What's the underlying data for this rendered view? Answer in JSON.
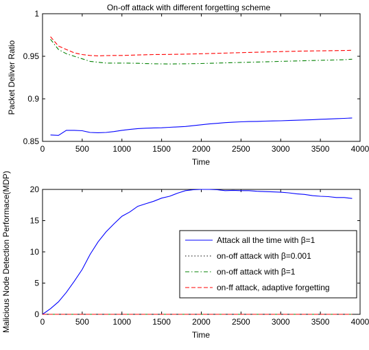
{
  "chart_data": [
    {
      "type": "line",
      "title": "On-off attack with different forgetting scheme",
      "xlabel": "Time",
      "ylabel": "Packet Deliver Ratio",
      "xlim": [
        0,
        4000
      ],
      "ylim": [
        0.85,
        1
      ],
      "xticks": [
        "0",
        "500",
        "1000",
        "1500",
        "2000",
        "2500",
        "3000",
        "3500",
        "4000"
      ],
      "yticks": [
        "0.85",
        "0.9",
        "0.95",
        "1"
      ],
      "grid": false,
      "legend": "none",
      "series": [
        {
          "color": "#0000ff",
          "style": "solid",
          "x": [
            100,
            200,
            300,
            400,
            500,
            600,
            700,
            800,
            900,
            1000,
            1100,
            1200,
            1300,
            1400,
            1500,
            1600,
            1700,
            1800,
            1900,
            2000,
            2100,
            2200,
            2300,
            2400,
            2500,
            2600,
            2700,
            2800,
            2900,
            3000,
            3100,
            3200,
            3300,
            3400,
            3500,
            3600,
            3700,
            3800,
            3900
          ],
          "y": [
            0.8575,
            0.857,
            0.863,
            0.863,
            0.8625,
            0.8605,
            0.8602,
            0.8605,
            0.8615,
            0.863,
            0.864,
            0.865,
            0.8655,
            0.8658,
            0.866,
            0.8665,
            0.867,
            0.8675,
            0.8685,
            0.8695,
            0.8705,
            0.8712,
            0.872,
            0.8725,
            0.873,
            0.8733,
            0.8735,
            0.8738,
            0.874,
            0.8742,
            0.8745,
            0.8748,
            0.8752,
            0.8755,
            0.876,
            0.8763,
            0.8767,
            0.877,
            0.8775
          ]
        },
        {
          "color": "#008000",
          "style": "dashdot",
          "x": [
            100,
            200,
            300,
            400,
            500,
            600,
            700,
            800,
            900,
            1000,
            1200,
            1400,
            1600,
            1800,
            2000,
            2200,
            2400,
            2600,
            2800,
            3000,
            3200,
            3400,
            3600,
            3800,
            3900
          ],
          "y": [
            0.97,
            0.958,
            0.953,
            0.95,
            0.947,
            0.944,
            0.943,
            0.942,
            0.942,
            0.942,
            0.9418,
            0.9412,
            0.941,
            0.9412,
            0.9415,
            0.942,
            0.9425,
            0.943,
            0.9435,
            0.944,
            0.9445,
            0.945,
            0.9455,
            0.946,
            0.9465
          ]
        },
        {
          "color": "#ff0000",
          "style": "dashed",
          "x": [
            100,
            200,
            300,
            400,
            500,
            600,
            700,
            800,
            900,
            1000,
            1200,
            1400,
            1600,
            1800,
            2000,
            2200,
            2400,
            2600,
            2800,
            3000,
            3200,
            3400,
            3600,
            3800,
            3900
          ],
          "y": [
            0.973,
            0.962,
            0.958,
            0.954,
            0.952,
            0.951,
            0.9505,
            0.9508,
            0.951,
            0.951,
            0.9515,
            0.952,
            0.9522,
            0.9525,
            0.953,
            0.9535,
            0.954,
            0.9545,
            0.955,
            0.9555,
            0.956,
            0.9563,
            0.9565,
            0.9568,
            0.957
          ]
        }
      ]
    },
    {
      "type": "line",
      "title": "",
      "xlabel": "Time",
      "ylabel": "Malicious Node Detection Performace(MDP)",
      "xlim": [
        0,
        4000
      ],
      "ylim": [
        0,
        20
      ],
      "xticks": [
        "0",
        "500",
        "1000",
        "1500",
        "2000",
        "2500",
        "3000",
        "3500",
        "4000"
      ],
      "yticks": [
        "0",
        "5",
        "10",
        "15",
        "20"
      ],
      "grid": false,
      "legend": "center-right",
      "series": [
        {
          "name": "Attack all the time with β=1",
          "color": "#0000ff",
          "style": "solid",
          "x": [
            0,
            100,
            200,
            300,
            400,
            500,
            600,
            700,
            800,
            900,
            1000,
            1100,
            1200,
            1300,
            1400,
            1500,
            1600,
            1700,
            1800,
            1900,
            2000,
            2100,
            2200,
            2300,
            2400,
            2500,
            2600,
            2700,
            2800,
            2900,
            3000,
            3100,
            3200,
            3300,
            3400,
            3500,
            3600,
            3700,
            3800,
            3900
          ],
          "y": [
            0,
            0.9,
            2.0,
            3.5,
            5.3,
            7.2,
            9.6,
            11.6,
            13.2,
            14.5,
            15.7,
            16.4,
            17.3,
            17.7,
            18.1,
            18.6,
            18.9,
            19.4,
            19.8,
            19.95,
            20.0,
            20.0,
            19.95,
            19.8,
            19.85,
            19.8,
            19.8,
            19.7,
            19.65,
            19.6,
            19.55,
            19.45,
            19.3,
            19.2,
            19.0,
            18.9,
            18.85,
            18.7,
            18.7,
            18.55
          ]
        },
        {
          "name": "on-off attack with β=0.001",
          "color": "#000000",
          "style": "dotted",
          "x": [
            0,
            500,
            1000,
            1500,
            2000,
            2500,
            3000,
            3500,
            3900
          ],
          "y": [
            0,
            0,
            0,
            0,
            0,
            0,
            0,
            0,
            0
          ]
        },
        {
          "name": "on-off attack with β=1",
          "color": "#008000",
          "style": "dashdot",
          "x": [
            0,
            500,
            1000,
            1500,
            2000,
            2500,
            3000,
            3500,
            3900
          ],
          "y": [
            0,
            0,
            0,
            0,
            0,
            0,
            0,
            0,
            0
          ]
        },
        {
          "name": "on-ff attack, adaptive forgetting",
          "color": "#ff0000",
          "style": "dashed",
          "x": [
            0,
            500,
            1000,
            1500,
            2000,
            2500,
            3000,
            3500,
            3900
          ],
          "y": [
            0,
            0,
            0,
            0,
            0,
            0,
            0,
            0,
            0
          ]
        }
      ]
    }
  ]
}
